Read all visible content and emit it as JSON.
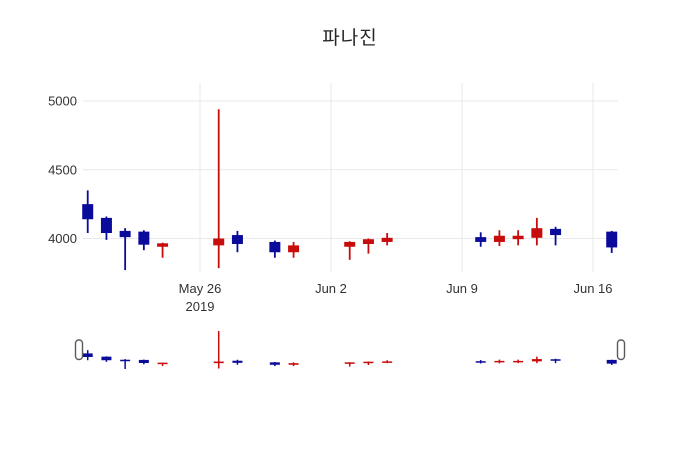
{
  "title": "파나진",
  "colors": {
    "up": "#c80c0c",
    "down": "#0b0b9b",
    "grid": "#e9e9e9",
    "tick_label": "#333333",
    "title_color": "#262626",
    "handle_fill": "#ffffff",
    "handle_border": "#5a5a5a",
    "background": "#ffffff"
  },
  "chart_data": {
    "type": "candlestick",
    "title": "파나진",
    "legend": "none",
    "grid": "on",
    "y_ticks": [
      5000,
      4500,
      4000
    ],
    "ylim_visible": [
      3760,
      5130
    ],
    "x_ticks": [
      {
        "label": "May 26",
        "sublabel": "2019",
        "date": "2019-05-26"
      },
      {
        "label": "Jun 2",
        "sublabel": "",
        "date": "2019-06-02"
      },
      {
        "label": "Jun 9",
        "sublabel": "",
        "date": "2019-06-09"
      },
      {
        "label": "Jun 16",
        "sublabel": "",
        "date": "2019-06-16"
      }
    ],
    "rangeslider": {
      "visible": true,
      "selected_range": [
        "2019-05-20",
        "2019-06-17"
      ]
    },
    "candles": [
      {
        "date": "2019-05-20",
        "open": 4250,
        "high": 4350,
        "low": 4040,
        "close": 4140
      },
      {
        "date": "2019-05-21",
        "open": 4150,
        "high": 4160,
        "low": 3990,
        "close": 4040
      },
      {
        "date": "2019-05-22",
        "open": 4055,
        "high": 4075,
        "low": 3770,
        "close": 4010
      },
      {
        "date": "2019-05-23",
        "open": 4050,
        "high": 4060,
        "low": 3915,
        "close": 3955
      },
      {
        "date": "2019-05-24",
        "open": 3940,
        "high": 3970,
        "low": 3860,
        "close": 3965
      },
      {
        "date": "2019-05-27",
        "open": 3950,
        "high": 4940,
        "low": 3785,
        "close": 4000
      },
      {
        "date": "2019-05-28",
        "open": 4025,
        "high": 4055,
        "low": 3900,
        "close": 3960
      },
      {
        "date": "2019-05-30",
        "open": 3975,
        "high": 3985,
        "low": 3860,
        "close": 3900
      },
      {
        "date": "2019-05-31",
        "open": 3900,
        "high": 3975,
        "low": 3860,
        "close": 3950
      },
      {
        "date": "2019-06-03",
        "open": 3940,
        "high": 3980,
        "low": 3845,
        "close": 3975
      },
      {
        "date": "2019-06-04",
        "open": 3960,
        "high": 4000,
        "low": 3890,
        "close": 3995
      },
      {
        "date": "2019-06-05",
        "open": 3975,
        "high": 4040,
        "low": 3950,
        "close": 4005
      },
      {
        "date": "2019-06-10",
        "open": 4010,
        "high": 4045,
        "low": 3940,
        "close": 3975
      },
      {
        "date": "2019-06-11",
        "open": 3975,
        "high": 4060,
        "low": 3945,
        "close": 4020
      },
      {
        "date": "2019-06-12",
        "open": 3995,
        "high": 4060,
        "low": 3950,
        "close": 4020
      },
      {
        "date": "2019-06-13",
        "open": 4005,
        "high": 4150,
        "low": 3950,
        "close": 4075
      },
      {
        "date": "2019-06-14",
        "open": 4070,
        "high": 4085,
        "low": 3950,
        "close": 4025
      },
      {
        "date": "2019-06-17",
        "open": 4050,
        "high": 4055,
        "low": 3895,
        "close": 3935
      }
    ]
  }
}
